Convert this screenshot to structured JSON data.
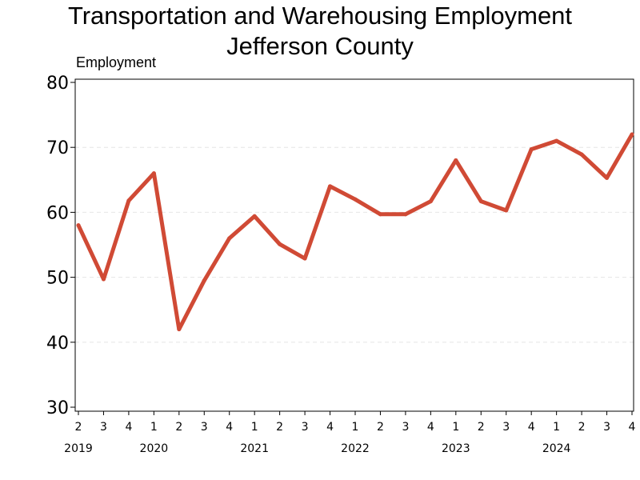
{
  "title_line1": "Transportation and Warehousing Employment",
  "title_line2": "Jefferson County",
  "chart_data": {
    "type": "line",
    "title": "Transportation and Warehousing Employment Jefferson County",
    "ylabel": "Employment",
    "xlabel": "",
    "ylim": [
      30,
      80
    ],
    "yticks": [
      30,
      40,
      50,
      60,
      70,
      80
    ],
    "grid": true,
    "color": "#d04a35",
    "x": [
      "2019 Q2",
      "2019 Q3",
      "2019 Q4",
      "2020 Q1",
      "2020 Q2",
      "2020 Q3",
      "2020 Q4",
      "2021 Q1",
      "2021 Q2",
      "2021 Q3",
      "2021 Q4",
      "2022 Q1",
      "2022 Q2",
      "2022 Q3",
      "2022 Q4",
      "2023 Q1",
      "2023 Q2",
      "2023 Q3",
      "2023 Q4",
      "2024 Q1",
      "2024 Q2",
      "2024 Q3",
      "2024 Q4"
    ],
    "quarter_labels": [
      "2",
      "3",
      "4",
      "1",
      "2",
      "3",
      "4",
      "1",
      "2",
      "3",
      "4",
      "1",
      "2",
      "3",
      "4",
      "1",
      "2",
      "3",
      "4",
      "1",
      "2",
      "3",
      "4"
    ],
    "year_labels": [
      {
        "label": "2019",
        "index": 0
      },
      {
        "label": "2020",
        "index": 3
      },
      {
        "label": "2021",
        "index": 7
      },
      {
        "label": "2022",
        "index": 11
      },
      {
        "label": "2023",
        "index": 15
      },
      {
        "label": "2024",
        "index": 19
      }
    ],
    "values": [
      58,
      49.7,
      61.8,
      66,
      42,
      49.5,
      56,
      59.4,
      55.1,
      52.9,
      64,
      62,
      59.7,
      59.7,
      61.7,
      68,
      61.7,
      60.3,
      69.7,
      71,
      68.9,
      65.3,
      72
    ]
  }
}
